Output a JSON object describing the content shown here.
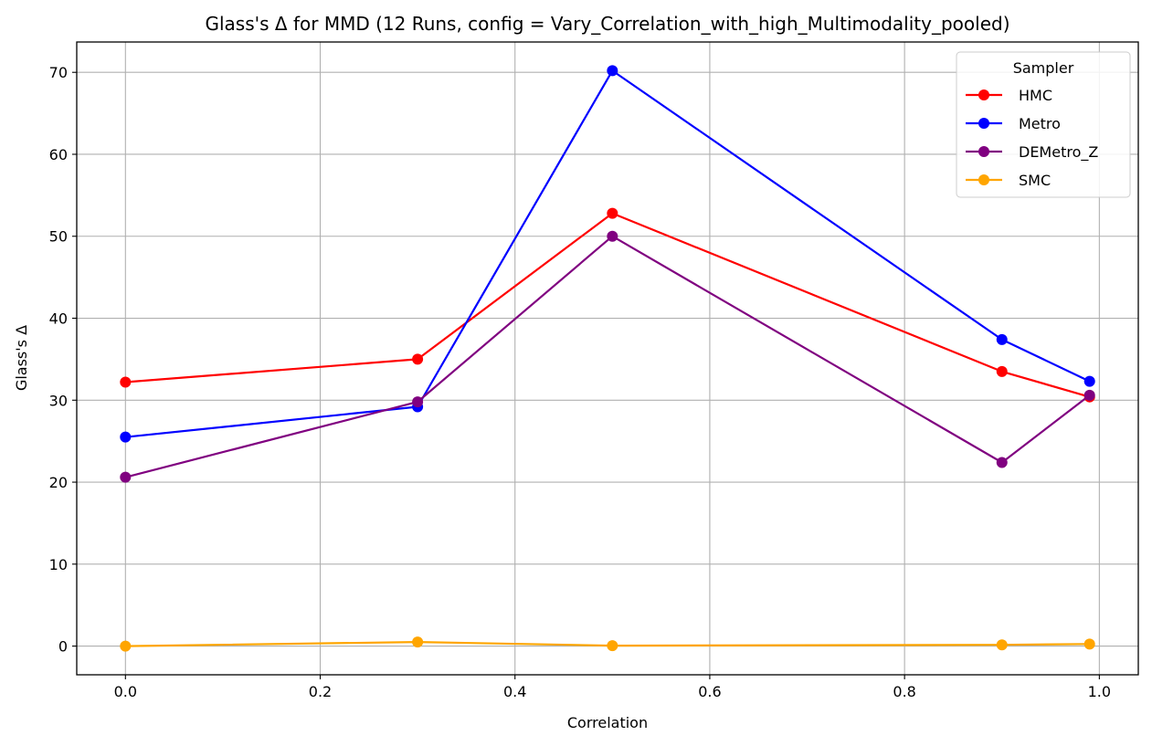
{
  "chart_data": {
    "type": "line",
    "title": "Glass's Δ for MMD (12 Runs, config = Vary_Correlation_with_high_Multimodality_pooled)",
    "xlabel": "Correlation",
    "ylabel": "Glass's Δ",
    "xlim": [
      -0.05,
      1.04
    ],
    "ylim": [
      -3.5,
      73.7
    ],
    "xticks": [
      0.0,
      0.2,
      0.4,
      0.6,
      0.8,
      1.0
    ],
    "xtick_labels": [
      "0.0",
      "0.2",
      "0.4",
      "0.6",
      "0.8",
      "1.0"
    ],
    "yticks": [
      0,
      10,
      20,
      30,
      40,
      50,
      60,
      70
    ],
    "ytick_labels": [
      "0",
      "10",
      "20",
      "30",
      "40",
      "50",
      "60",
      "70"
    ],
    "grid": true,
    "legend": {
      "title": "Sampler",
      "placement": "top-right"
    },
    "x": [
      0.0,
      0.3,
      0.5,
      0.9,
      0.99
    ],
    "series": [
      {
        "name": "HMC",
        "color": "#ff0000",
        "values": [
          32.2,
          35.0,
          52.8,
          33.5,
          30.4
        ]
      },
      {
        "name": "Metro",
        "color": "#0000ff",
        "values": [
          25.5,
          29.2,
          70.2,
          37.4,
          32.3
        ]
      },
      {
        "name": "DEMetro_Z",
        "color": "#800080",
        "values": [
          20.6,
          29.8,
          50.0,
          22.4,
          30.6
        ]
      },
      {
        "name": "SMC",
        "color": "#ffa500",
        "values": [
          0.0,
          0.5,
          0.05,
          0.15,
          0.25
        ]
      }
    ]
  }
}
